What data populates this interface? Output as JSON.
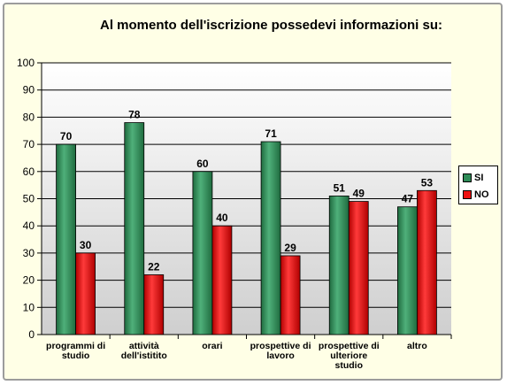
{
  "chart_data": {
    "type": "bar",
    "title": "Al  momento dell'iscrizione possedevi informazioni su:",
    "categories": [
      [
        "programmi di",
        "studio"
      ],
      [
        "attività",
        "dell'istitito"
      ],
      [
        "orari"
      ],
      [
        "prospettive di",
        "lavoro"
      ],
      [
        "prospettive  di",
        "ulteriore",
        "studio"
      ],
      [
        "altro"
      ]
    ],
    "series": [
      {
        "name": "SI",
        "values": [
          70,
          78,
          60,
          71,
          51,
          47
        ],
        "color": "#2e8b57"
      },
      {
        "name": "NO",
        "values": [
          30,
          22,
          40,
          29,
          49,
          53
        ],
        "color": "#ee1111"
      }
    ],
    "ylim": [
      0,
      100
    ],
    "yticks": [
      0,
      10,
      20,
      30,
      40,
      50,
      60,
      70,
      80,
      90,
      100
    ],
    "grid": true,
    "legend_position": "right",
    "colors": {
      "frame_background": "#ffffe6",
      "plot_top": "#ffffff",
      "plot_bottom": "#cfcfcf"
    }
  }
}
